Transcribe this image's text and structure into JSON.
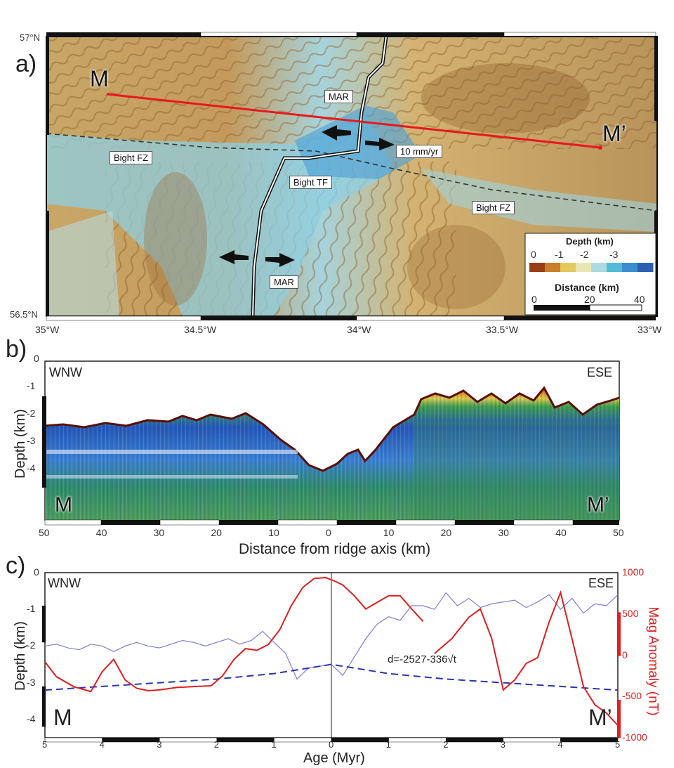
{
  "panels": {
    "a": "a)",
    "b": "b)",
    "c": "c)"
  },
  "map": {
    "lat_top": "57°N",
    "lat_bottom": "56.5°N",
    "lon_ticks": [
      "35°W",
      "34.5°W",
      "34°W",
      "33.5°W",
      "33°W"
    ],
    "profile_start": "M",
    "profile_end": "M’",
    "labels": {
      "mar_top": "MAR",
      "mar_bottom": "MAR",
      "bight_fz_left": "Bight FZ",
      "bight_fz_right": "Bight FZ",
      "bight_tf": "Bight TF",
      "rate": "10 mm/yr"
    },
    "legend": {
      "depth_title": "Depth (km)",
      "depth_ticks": [
        "0",
        "-1",
        "-2",
        "-3"
      ],
      "depth_colors": [
        "#9a3c12",
        "#c97f2a",
        "#e3c85c",
        "#e9e6b4",
        "#a9dbe0",
        "#52bcd8",
        "#3a8ed0",
        "#2a5fb3"
      ],
      "distance_title": "Distance (km)",
      "distance_ticks": [
        "0",
        "20",
        "40"
      ]
    }
  },
  "seismic": {
    "left_dir": "WNW",
    "right_dir": "ESE",
    "ylabel": "Depth (km)",
    "yticks": [
      "0",
      "-1",
      "-2",
      "-3",
      "-4"
    ],
    "xlabel": "Distance from ridge axis (km)",
    "xticks": [
      "50",
      "40",
      "30",
      "20",
      "10",
      "0",
      "10",
      "20",
      "30",
      "40",
      "50"
    ],
    "left_point": "M",
    "right_point": "M’"
  },
  "chart_data": {
    "type": "line",
    "left_label": "WNW",
    "right_label": "ESE",
    "xlabel": "Age (Myr)",
    "ylabel": "Depth (km)",
    "ylabel_right": "Mag Anomaly  (nT)",
    "x_ticks": [
      "5",
      "4",
      "3",
      "2",
      "1",
      "0",
      "1",
      "2",
      "3",
      "4",
      "5"
    ],
    "y_ticks": [
      "0",
      "-1",
      "-2",
      "-3",
      "-4"
    ],
    "y2_ticks": [
      "1000",
      "500",
      "0",
      "-500",
      "-1000"
    ],
    "ylim": [
      -4.5,
      0
    ],
    "y2lim": [
      -1000,
      1000
    ],
    "equation": "d=-2527-336√t",
    "left_point": "M",
    "right_point": "M’",
    "colors": {
      "depth": "#7b7fd6",
      "model": "#2a35b0",
      "mag": "#e01e1e"
    },
    "series": [
      {
        "role": "bathymetry",
        "x": [
          -5,
          -4.8,
          -4.6,
          -4.4,
          -4.2,
          -4.0,
          -3.8,
          -3.6,
          -3.4,
          -3.2,
          -3.0,
          -2.8,
          -2.6,
          -2.4,
          -2.2,
          -2.0,
          -1.8,
          -1.6,
          -1.4,
          -1.2,
          -1.0,
          -0.8,
          -0.6,
          -0.4,
          -0.2,
          0.0,
          0.2,
          0.4,
          0.6,
          0.8,
          1.0,
          1.2,
          1.4,
          1.6,
          1.8,
          2.0,
          2.2,
          2.4,
          2.6,
          2.8,
          3.0,
          3.2,
          3.4,
          3.6,
          3.8,
          4.0,
          4.2,
          4.4,
          4.6,
          4.8,
          5.0
        ],
        "values": [
          -2.0,
          -1.95,
          -2.05,
          -2.1,
          -1.95,
          -2.0,
          -2.15,
          -2.0,
          -1.9,
          -2.0,
          -2.05,
          -1.95,
          -1.85,
          -1.9,
          -2.0,
          -1.9,
          -1.8,
          -1.95,
          -1.85,
          -1.6,
          -1.9,
          -2.2,
          -2.9,
          -2.6,
          -2.55,
          -2.5,
          -2.8,
          -2.3,
          -1.8,
          -1.4,
          -1.2,
          -1.3,
          -0.9,
          -0.9,
          -1.0,
          -0.55,
          -0.9,
          -0.7,
          -0.95,
          -0.85,
          -0.8,
          -0.75,
          -0.95,
          -0.8,
          -0.6,
          -1.0,
          -0.7,
          -1.1,
          -0.85,
          -0.9,
          -0.6
        ]
      },
      {
        "role": "model",
        "x": [
          -5,
          -4,
          -3,
          -2,
          -1,
          0,
          1,
          2,
          3,
          4,
          5
        ],
        "values": [
          -3.2,
          -3.1,
          -3.0,
          -2.9,
          -2.75,
          -2.5,
          -2.75,
          -2.9,
          -3.0,
          -3.1,
          -3.2
        ]
      },
      {
        "role": "magnetic_west",
        "x": [
          -5,
          -4.8,
          -4.5,
          -4.2,
          -4.0,
          -3.8,
          -3.6,
          -3.4,
          -3.2,
          -3.0,
          -2.7,
          -2.4,
          -2.1,
          -1.9,
          -1.7,
          -1.5,
          -1.3,
          -1.1,
          -0.9,
          -0.7,
          -0.5,
          -0.3,
          -0.1,
          0.05,
          0.2
        ],
        "values": [
          -80,
          -260,
          -380,
          -440,
          -200,
          -50,
          -300,
          -400,
          -430,
          -420,
          -390,
          -380,
          -370,
          -250,
          -50,
          80,
          60,
          130,
          310,
          600,
          820,
          930,
          940,
          900,
          850
        ]
      },
      {
        "role": "magnetic_east",
        "x": [
          0.2,
          0.4,
          0.6,
          0.8,
          1.0,
          1.2,
          1.4,
          1.6
        ],
        "values": [
          850,
          720,
          560,
          640,
          720,
          720,
          560,
          410
        ]
      },
      {
        "role": "magnetic_east_2",
        "x": [
          1.8,
          2.1,
          2.4,
          2.6,
          2.8,
          3.0,
          3.2,
          3.4,
          3.6,
          3.8,
          4.0,
          4.2,
          4.4,
          4.6,
          4.8,
          5.0
        ],
        "values": [
          20,
          200,
          460,
          560,
          200,
          -420,
          -300,
          -100,
          -30,
          400,
          760,
          200,
          -380,
          -600,
          -700,
          -850
        ]
      }
    ]
  }
}
